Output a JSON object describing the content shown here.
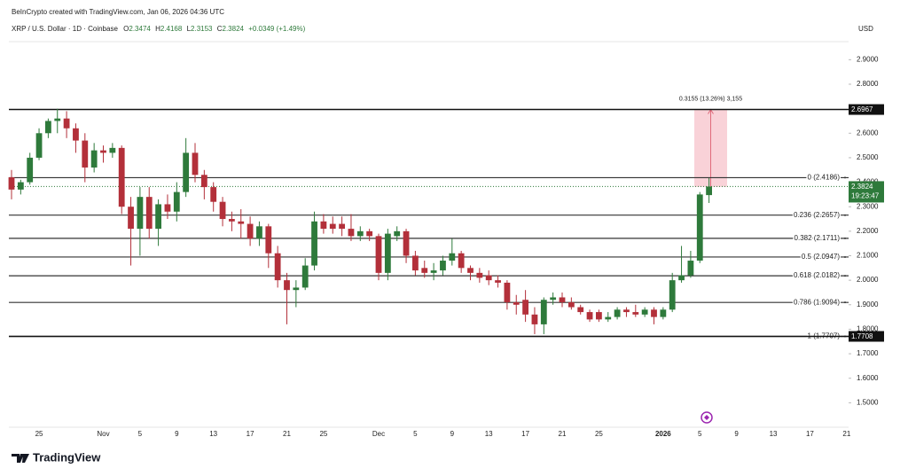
{
  "header": {
    "credit": "BeInCrypto created with TradingView.com, Jan 06, 2026 04:36 UTC",
    "symbol": "XRP / U.S. Dollar · 1D · Coinbase",
    "ohlc": [
      {
        "key": "O",
        "value": "2.3474"
      },
      {
        "key": "H",
        "value": "2.4168"
      },
      {
        "key": "L",
        "value": "2.3153"
      },
      {
        "key": "C",
        "value": "2.3824"
      }
    ],
    "change": "+0.0349 (+1.49%)",
    "currency": "USD"
  },
  "footer": {
    "logo": "TradingView"
  },
  "chart_data": {
    "type": "candlestick",
    "up_color": "#2e7a3b",
    "down_color": "#b3303a",
    "categories": [
      null,
      null,
      null,
      "25",
      null,
      null,
      null,
      null,
      null,
      null,
      "Nov",
      null,
      null,
      null,
      "5",
      null,
      null,
      null,
      "9",
      null,
      null,
      null,
      "13",
      null,
      null,
      null,
      "17",
      null,
      null,
      null,
      "21",
      null,
      null,
      null,
      "25",
      null,
      null,
      null,
      null,
      null,
      "Dec",
      null,
      null,
      null,
      "5",
      null,
      null,
      null,
      "9",
      null,
      null,
      null,
      "13",
      null,
      null,
      null,
      "17",
      null,
      null,
      null,
      "21",
      null,
      null,
      null,
      "25",
      null,
      null,
      null,
      null,
      null,
      null,
      "2026",
      null,
      null,
      null,
      "5",
      null,
      null,
      null,
      "9",
      null,
      null,
      null,
      "13",
      null,
      null,
      null,
      "17",
      null,
      null,
      null,
      "21"
    ],
    "open": [
      2.42,
      2.37,
      2.4,
      2.5,
      2.6,
      2.65,
      2.66,
      2.62,
      2.57,
      2.46,
      2.53,
      2.52,
      2.54,
      2.3,
      2.21,
      2.34,
      2.21,
      2.31,
      2.28,
      2.36,
      2.52,
      2.43,
      2.38,
      2.32,
      2.25,
      2.24,
      2.23,
      2.17,
      2.22,
      2.11,
      2.0,
      1.96,
      1.97,
      2.06,
      2.24,
      2.23,
      2.23,
      2.21,
      2.18,
      2.2,
      2.18,
      2.03,
      2.18,
      2.2,
      2.1,
      2.05,
      2.03,
      2.04,
      2.08,
      2.11,
      2.05,
      2.03,
      2.02,
      2.0,
      1.99,
      1.91,
      1.92,
      1.86,
      1.82,
      1.92,
      1.93,
      1.91,
      1.89,
      1.87,
      1.87,
      1.84,
      1.85,
      1.88,
      1.87,
      1.86,
      1.88,
      1.85,
      1.88,
      2.0,
      2.02,
      2.08,
      2.3474,
      null,
      null,
      null,
      null,
      null,
      null,
      null,
      null,
      null,
      null,
      null,
      null,
      null,
      null,
      null
    ],
    "high": [
      2.45,
      2.41,
      2.52,
      2.62,
      2.66,
      2.7,
      2.69,
      2.64,
      2.6,
      2.56,
      2.55,
      2.56,
      2.55,
      2.34,
      2.38,
      2.38,
      2.33,
      2.35,
      2.4,
      2.58,
      2.56,
      2.45,
      2.4,
      2.34,
      2.28,
      2.29,
      2.26,
      2.24,
      2.23,
      2.14,
      2.03,
      2.0,
      2.09,
      2.28,
      2.27,
      2.26,
      2.26,
      2.27,
      2.22,
      2.21,
      2.19,
      2.21,
      2.22,
      2.21,
      2.12,
      2.08,
      2.07,
      2.1,
      2.17,
      2.12,
      2.06,
      2.05,
      2.04,
      2.02,
      2.0,
      1.94,
      1.96,
      1.89,
      1.93,
      1.95,
      1.95,
      1.93,
      1.9,
      1.88,
      1.88,
      1.87,
      1.89,
      1.89,
      1.9,
      1.89,
      1.89,
      1.89,
      2.03,
      2.14,
      2.12,
      2.36,
      2.4168,
      null,
      null,
      null,
      null,
      null,
      null,
      null,
      null,
      null,
      null,
      null,
      null,
      null,
      null,
      null
    ],
    "low": [
      2.33,
      2.35,
      2.39,
      2.49,
      2.58,
      2.6,
      2.58,
      2.52,
      2.4,
      2.44,
      2.48,
      2.5,
      2.27,
      2.06,
      2.1,
      2.17,
      2.14,
      2.25,
      2.24,
      2.34,
      2.4,
      2.33,
      2.28,
      2.22,
      2.2,
      2.17,
      2.14,
      2.14,
      2.05,
      1.97,
      1.82,
      1.89,
      1.96,
      2.04,
      2.19,
      2.19,
      2.18,
      2.16,
      2.16,
      2.16,
      2.0,
      2.0,
      2.16,
      2.07,
      2.02,
      2.01,
      2.0,
      2.02,
      2.06,
      2.03,
      2.0,
      1.99,
      1.98,
      1.97,
      1.88,
      1.86,
      1.83,
      1.78,
      1.78,
      1.9,
      1.89,
      1.88,
      1.86,
      1.83,
      1.83,
      1.83,
      1.84,
      1.85,
      1.85,
      1.85,
      1.82,
      1.84,
      1.87,
      1.99,
      2.01,
      2.07,
      2.3153,
      null,
      null,
      null,
      null,
      null,
      null,
      null,
      null,
      null,
      null,
      null,
      null,
      null,
      null,
      null
    ],
    "close": [
      2.37,
      2.4,
      2.5,
      2.6,
      2.65,
      2.66,
      2.62,
      2.57,
      2.46,
      2.53,
      2.52,
      2.54,
      2.3,
      2.21,
      2.34,
      2.21,
      2.31,
      2.28,
      2.36,
      2.52,
      2.43,
      2.38,
      2.32,
      2.25,
      2.24,
      2.23,
      2.17,
      2.22,
      2.11,
      2.0,
      1.96,
      1.97,
      2.06,
      2.24,
      2.21,
      2.21,
      2.21,
      2.18,
      2.2,
      2.18,
      2.03,
      2.19,
      2.2,
      2.1,
      2.04,
      2.03,
      2.04,
      2.08,
      2.11,
      2.05,
      2.03,
      2.01,
      2.0,
      1.99,
      1.91,
      1.9,
      1.86,
      1.82,
      1.92,
      1.93,
      1.91,
      1.89,
      1.87,
      1.84,
      1.84,
      1.85,
      1.88,
      1.87,
      1.86,
      1.88,
      1.85,
      1.88,
      2.0,
      2.02,
      2.08,
      2.35,
      2.3824,
      null,
      null,
      null,
      null,
      null,
      null,
      null,
      null,
      null,
      null,
      null,
      null,
      null,
      null,
      null
    ],
    "ylim": [
      1.4,
      2.97
    ],
    "yticks": [
      {
        "value": 2.9,
        "label": "2.9000"
      },
      {
        "value": 2.8,
        "label": "2.8000"
      },
      {
        "value": 2.7,
        "label": "2.7000"
      },
      {
        "value": 2.6,
        "label": "2.6000"
      },
      {
        "value": 2.5,
        "label": "2.5000"
      },
      {
        "value": 2.4,
        "label": "2.4000"
      },
      {
        "value": 2.3,
        "label": "2.3000"
      },
      {
        "value": 2.2,
        "label": "2.2000"
      },
      {
        "value": 2.1,
        "label": "2.1000"
      },
      {
        "value": 2.0,
        "label": "2.0000"
      },
      {
        "value": 1.9,
        "label": "1.9000"
      },
      {
        "value": 1.8,
        "label": "1.8000"
      },
      {
        "value": 1.7,
        "label": "1.7000"
      },
      {
        "value": 1.6,
        "label": "1.6000"
      },
      {
        "value": 1.5,
        "label": "1.5000"
      }
    ],
    "levels": [
      {
        "value": 2.4186,
        "label": "0 (2.4186)"
      },
      {
        "value": 2.2657,
        "label": "0.236 (2.2657)"
      },
      {
        "value": 2.1711,
        "label": "0.382 (2.1711)"
      },
      {
        "value": 2.0947,
        "label": "0.5 (2.0947)"
      },
      {
        "value": 2.0182,
        "label": "0.618 (2.0182)"
      },
      {
        "value": 1.9094,
        "label": "0.786 (1.9094)"
      },
      {
        "value": 1.7707,
        "label": "1 (1.7707)"
      }
    ],
    "price_lines": [
      2.6967,
      1.7708
    ],
    "last_price": 2.3824,
    "countdown": "19:23:47",
    "measure": {
      "low": 2.3812,
      "high": 2.6967,
      "label": "0.3155 (13.26%) 3,155"
    }
  }
}
